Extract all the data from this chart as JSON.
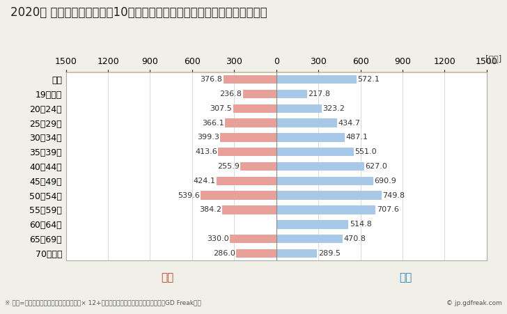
{
  "title": "2020年 民間企業（従業者数10人以上）フルタイム労働者の男女別平均年収",
  "unit_label": "[万円]",
  "footnote": "※ 年収=「きまって支給する現金給与額」× 12+「年間賞与その他特別給与額」としてGD Freak推計",
  "copyright": "© jp.gdfreak.com",
  "categories": [
    "全体",
    "19歳以下",
    "20～24歳",
    "25～29歳",
    "30～34歳",
    "35～39歳",
    "40～44歳",
    "45～49歳",
    "50～54歳",
    "55～59歳",
    "60～64歳",
    "65～69歳",
    "70歳以上"
  ],
  "female_values": [
    376.8,
    236.8,
    307.5,
    366.1,
    399.3,
    413.6,
    255.9,
    424.1,
    539.6,
    384.2,
    0.0,
    330.0,
    286.0
  ],
  "male_values": [
    572.1,
    217.8,
    323.2,
    434.7,
    487.1,
    551.0,
    627.0,
    690.9,
    749.8,
    707.6,
    514.8,
    470.8,
    289.5
  ],
  "female_color": "#e8a09a",
  "male_color": "#a8c8e8",
  "female_label": "女性",
  "male_label": "男性",
  "female_label_color": "#c0392b",
  "male_label_color": "#2980b9",
  "xlim": 1500,
  "background_color": "#f0f0e8",
  "plot_background_color": "#ffffff",
  "bar_height": 0.6,
  "title_fontsize": 12,
  "tick_fontsize": 9,
  "label_fontsize": 8,
  "category_fontsize": 9
}
